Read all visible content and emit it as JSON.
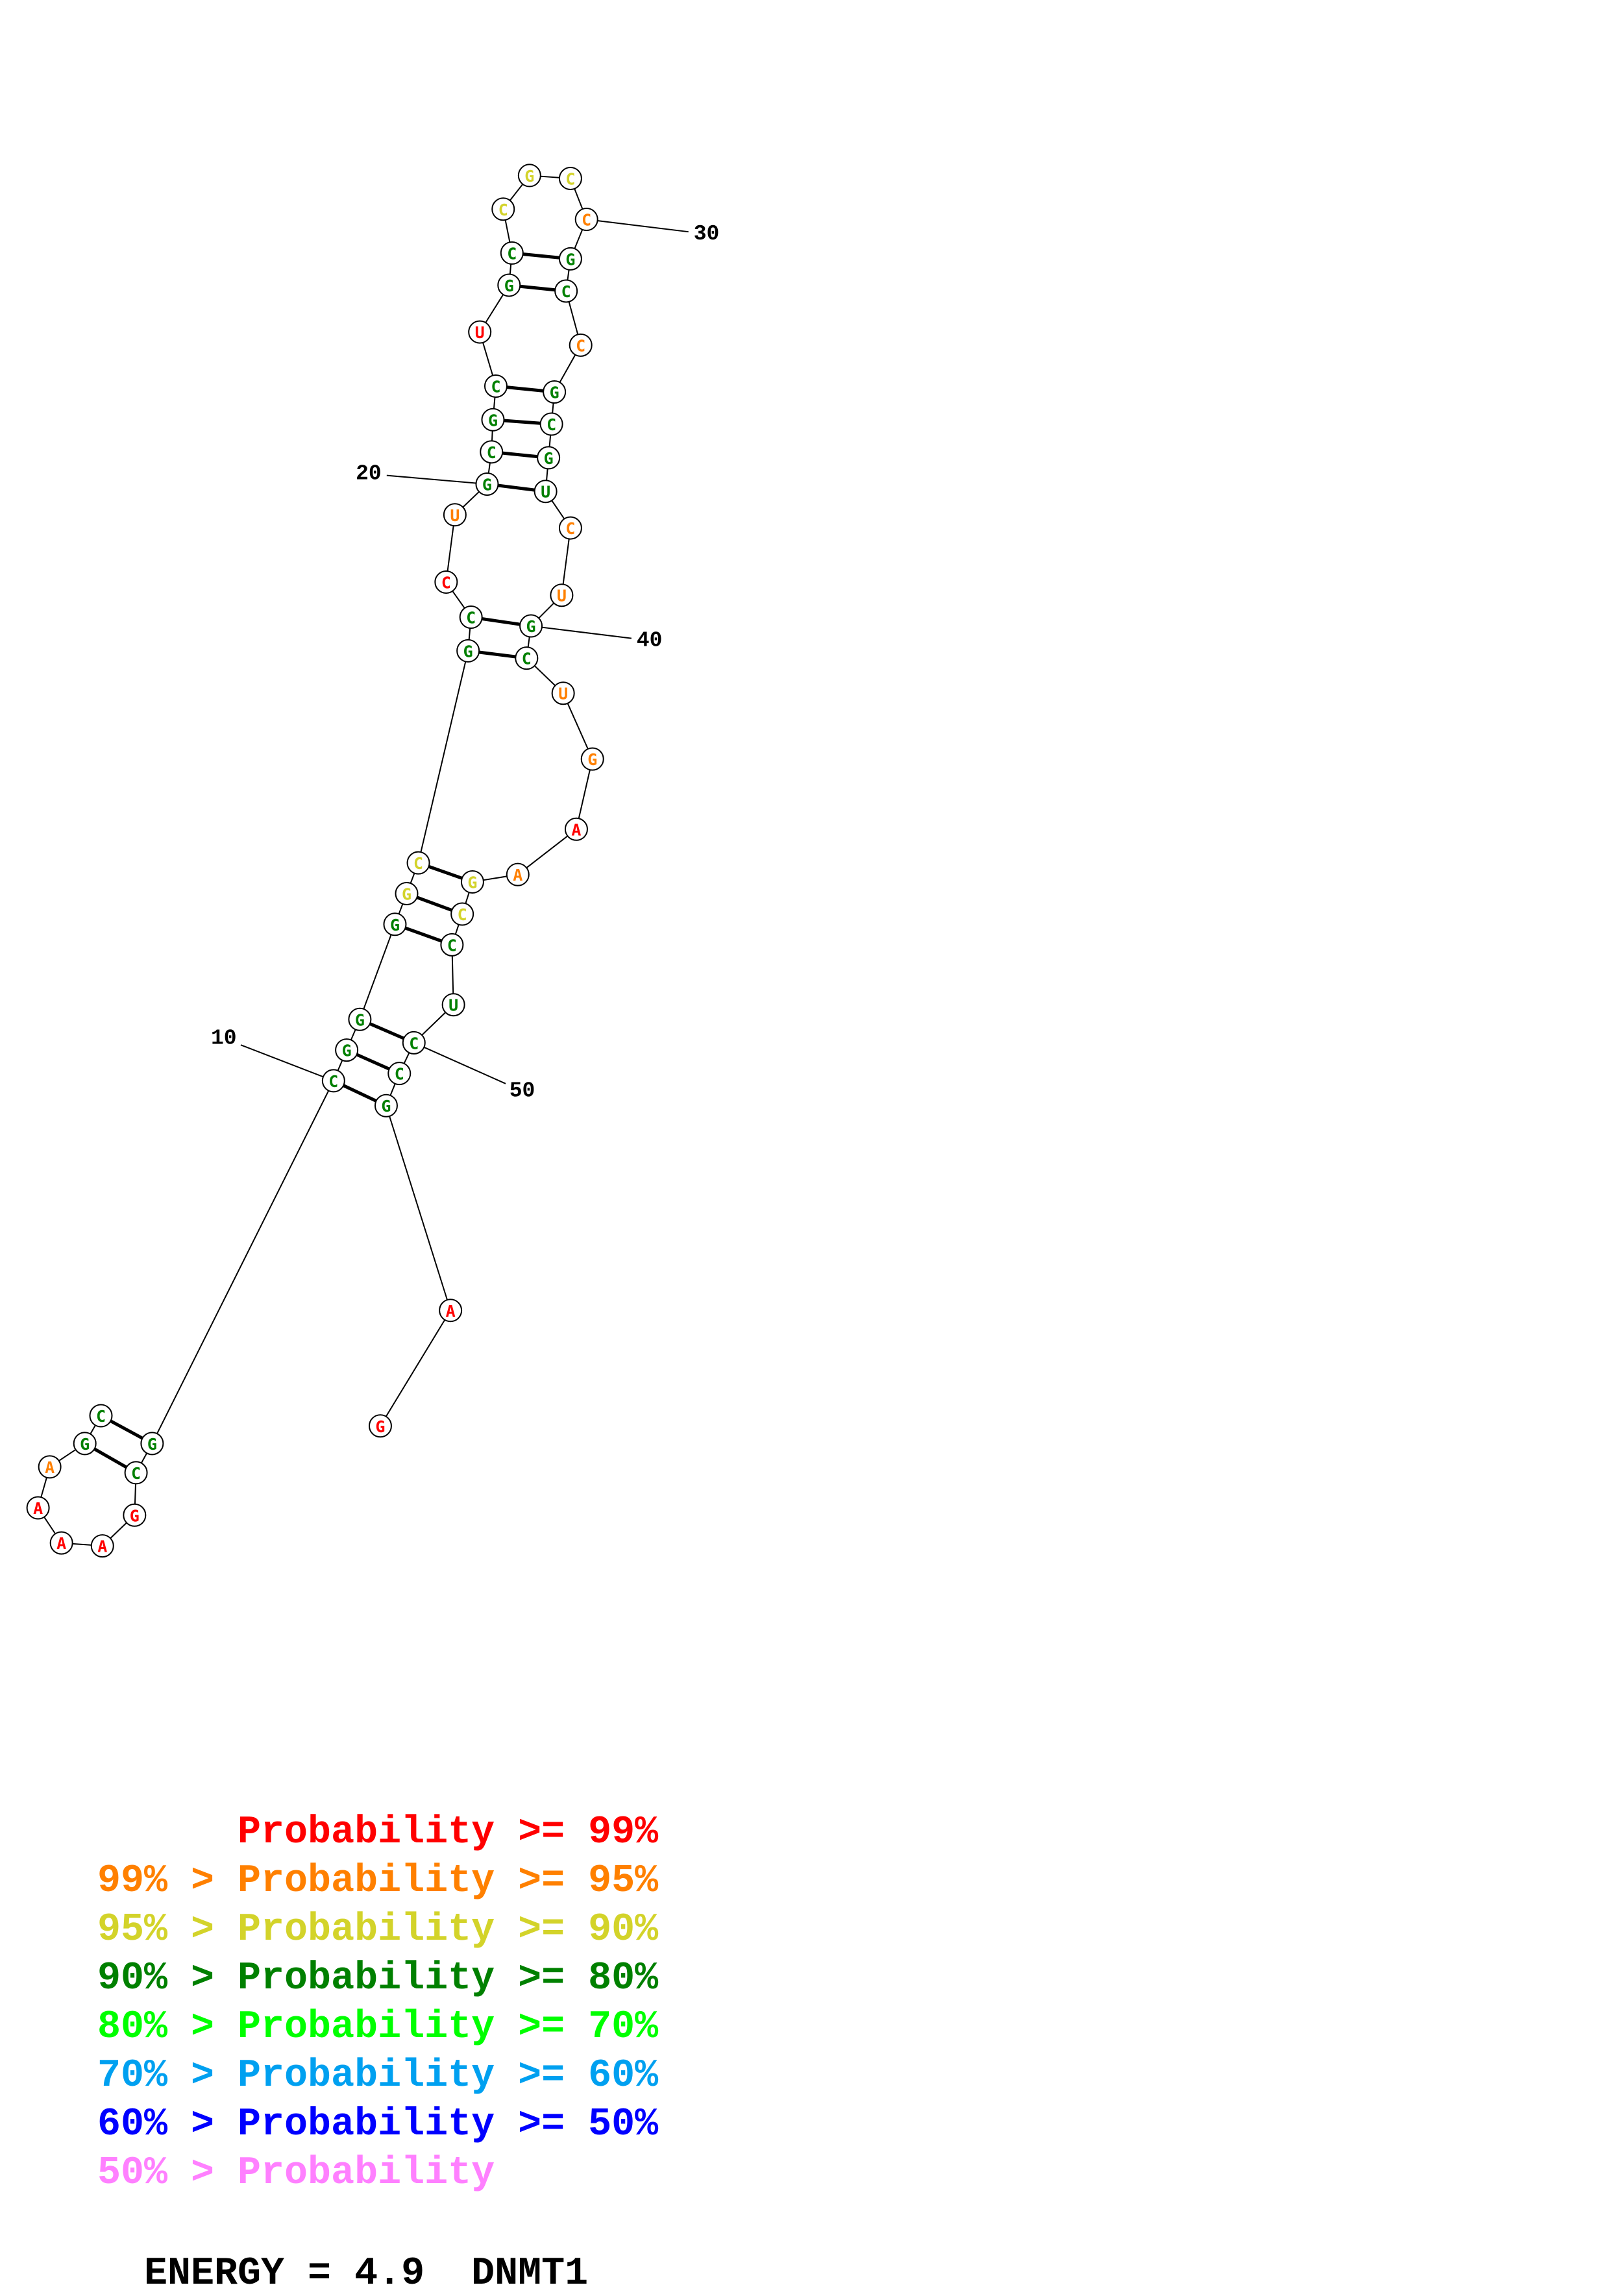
{
  "colors": {
    "p99": "#ff0000",
    "p95": "#ff8000",
    "p90": "#d3d32a",
    "p80": "#008000",
    "p70": "#00ff00",
    "p60": "#00a0f0",
    "p50": "#0000ff",
    "plow": "#ff80ff"
  },
  "sequence": [
    {
      "n": 1,
      "base": "C",
      "prob": "p80"
    },
    {
      "n": 2,
      "base": "G",
      "prob": "p80"
    },
    {
      "n": 3,
      "base": "A",
      "prob": "p95"
    },
    {
      "n": 4,
      "base": "A",
      "prob": "p99"
    },
    {
      "n": 5,
      "base": "A",
      "prob": "p99"
    },
    {
      "n": 6,
      "base": "A",
      "prob": "p99"
    },
    {
      "n": 7,
      "base": "G",
      "prob": "p99"
    },
    {
      "n": 8,
      "base": "C",
      "prob": "p80"
    },
    {
      "n": 9,
      "base": "G",
      "prob": "p80"
    },
    {
      "n": 10,
      "base": "C",
      "prob": "p80"
    },
    {
      "n": 11,
      "base": "G",
      "prob": "p80"
    },
    {
      "n": 12,
      "base": "G",
      "prob": "p80"
    },
    {
      "n": 13,
      "base": "G",
      "prob": "p80"
    },
    {
      "n": 14,
      "base": "G",
      "prob": "p90"
    },
    {
      "n": 15,
      "base": "C",
      "prob": "p90"
    },
    {
      "n": 16,
      "base": "G",
      "prob": "p80"
    },
    {
      "n": 17,
      "base": "C",
      "prob": "p80"
    },
    {
      "n": 18,
      "base": "C",
      "prob": "p99"
    },
    {
      "n": 19,
      "base": "U",
      "prob": "p95"
    },
    {
      "n": 20,
      "base": "G",
      "prob": "p80"
    },
    {
      "n": 21,
      "base": "C",
      "prob": "p80"
    },
    {
      "n": 22,
      "base": "G",
      "prob": "p80"
    },
    {
      "n": 23,
      "base": "C",
      "prob": "p80"
    },
    {
      "n": 24,
      "base": "U",
      "prob": "p99"
    },
    {
      "n": 25,
      "base": "G",
      "prob": "p80"
    },
    {
      "n": 26,
      "base": "C",
      "prob": "p80"
    },
    {
      "n": 27,
      "base": "C",
      "prob": "p90"
    },
    {
      "n": 28,
      "base": "G",
      "prob": "p90"
    },
    {
      "n": 29,
      "base": "C",
      "prob": "p90"
    },
    {
      "n": 30,
      "base": "C",
      "prob": "p95"
    },
    {
      "n": 31,
      "base": "G",
      "prob": "p80"
    },
    {
      "n": 32,
      "base": "C",
      "prob": "p80"
    },
    {
      "n": 33,
      "base": "C",
      "prob": "p95"
    },
    {
      "n": 34,
      "base": "G",
      "prob": "p80"
    },
    {
      "n": 35,
      "base": "C",
      "prob": "p80"
    },
    {
      "n": 36,
      "base": "G",
      "prob": "p80"
    },
    {
      "n": 37,
      "base": "U",
      "prob": "p80"
    },
    {
      "n": 38,
      "base": "C",
      "prob": "p95"
    },
    {
      "n": 39,
      "base": "U",
      "prob": "p95"
    },
    {
      "n": 40,
      "base": "G",
      "prob": "p80"
    },
    {
      "n": 41,
      "base": "C",
      "prob": "p80"
    },
    {
      "n": 42,
      "base": "U",
      "prob": "p95"
    },
    {
      "n": 43,
      "base": "G",
      "prob": "p95"
    },
    {
      "n": 44,
      "base": "A",
      "prob": "p99"
    },
    {
      "n": 45,
      "base": "A",
      "prob": "p95"
    },
    {
      "n": 46,
      "base": "G",
      "prob": "p90"
    },
    {
      "n": 47,
      "base": "C",
      "prob": "p90"
    },
    {
      "n": 48,
      "base": "C",
      "prob": "p80"
    },
    {
      "n": 49,
      "base": "U",
      "prob": "p80"
    },
    {
      "n": 50,
      "base": "C",
      "prob": "p80"
    },
    {
      "n": 51,
      "base": "C",
      "prob": "p80"
    },
    {
      "n": 52,
      "base": "G",
      "prob": "p80"
    },
    {
      "n": 53,
      "base": "A",
      "prob": "p99"
    },
    {
      "n": 54,
      "base": "G",
      "prob": "p99"
    }
  ],
  "pairs": [
    [
      1,
      9
    ],
    [
      2,
      8
    ],
    [
      10,
      52
    ],
    [
      11,
      51
    ],
    [
      12,
      50
    ],
    [
      13,
      48
    ],
    [
      14,
      47
    ],
    [
      15,
      46
    ],
    [
      16,
      41
    ],
    [
      17,
      40
    ],
    [
      20,
      37
    ],
    [
      21,
      36
    ],
    [
      22,
      35
    ],
    [
      23,
      34
    ],
    [
      25,
      32
    ],
    [
      26,
      31
    ]
  ],
  "position_labels": [
    {
      "n": 10,
      "text": "10"
    },
    {
      "n": 20,
      "text": "20"
    },
    {
      "n": 30,
      "text": "30"
    },
    {
      "n": 40,
      "text": "40"
    },
    {
      "n": 50,
      "text": "50"
    }
  ],
  "legend": [
    {
      "prob": "p99",
      "text": "      Probability >= 99%"
    },
    {
      "prob": "p95",
      "text": "99% > Probability >= 95%"
    },
    {
      "prob": "p90",
      "text": "95% > Probability >= 90%"
    },
    {
      "prob": "p80",
      "text": "90% > Probability >= 80%"
    },
    {
      "prob": "p70",
      "text": "80% > Probability >= 70%"
    },
    {
      "prob": "p60",
      "text": "70% > Probability >= 60%"
    },
    {
      "prob": "p50",
      "text": "60% > Probability >= 50%"
    },
    {
      "prob": "plow",
      "text": "50% > Probability"
    }
  ],
  "footer": {
    "energy_label": "ENERGY = 4.9",
    "name": "DNMT1"
  }
}
